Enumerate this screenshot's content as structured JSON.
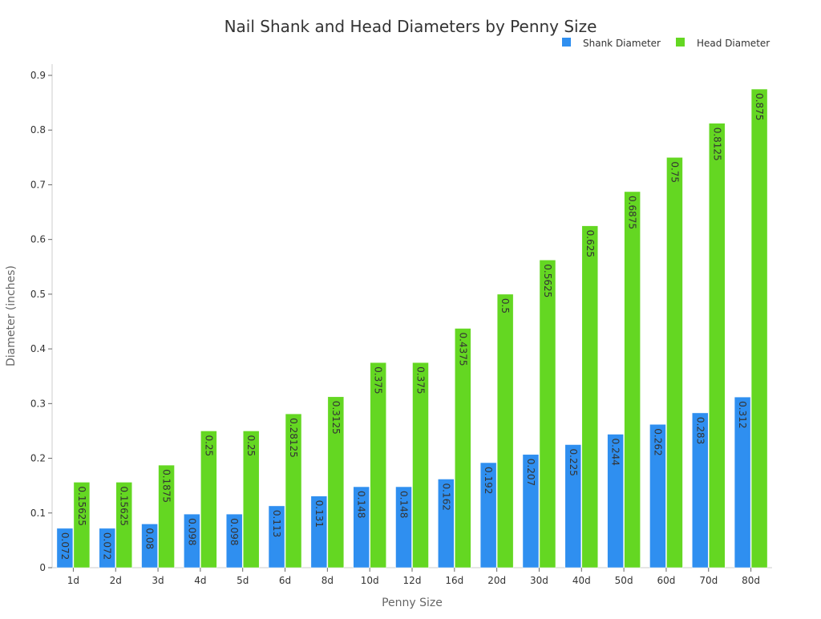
{
  "chart_data": {
    "type": "bar",
    "title": "Nail Shank and Head Diameters by Penny Size",
    "xlabel": "Penny Size",
    "ylabel": "Diameter (inches)",
    "ylim": [
      0,
      0.9
    ],
    "yticks": [
      "0",
      "0.1",
      "0.2",
      "0.3",
      "0.4",
      "0.5",
      "0.6",
      "0.7",
      "0.8",
      "0.9"
    ],
    "grid": false,
    "legend_position": "top-right",
    "categories": [
      "1d",
      "2d",
      "3d",
      "4d",
      "5d",
      "6d",
      "8d",
      "10d",
      "12d",
      "16d",
      "20d",
      "30d",
      "40d",
      "50d",
      "60d",
      "70d",
      "80d"
    ],
    "series": [
      {
        "name": "Shank Diameter",
        "color": "#2f8ff0",
        "values": [
          0.072,
          0.072,
          0.08,
          0.098,
          0.098,
          0.113,
          0.131,
          0.148,
          0.148,
          0.162,
          0.192,
          0.207,
          0.225,
          0.244,
          0.262,
          0.283,
          0.312
        ]
      },
      {
        "name": "Head Diameter",
        "color": "#64d722",
        "values": [
          0.15625,
          0.15625,
          0.1875,
          0.25,
          0.25,
          0.28125,
          0.3125,
          0.375,
          0.375,
          0.4375,
          0.5,
          0.5625,
          0.625,
          0.6875,
          0.75,
          0.8125,
          0.875
        ]
      }
    ]
  }
}
